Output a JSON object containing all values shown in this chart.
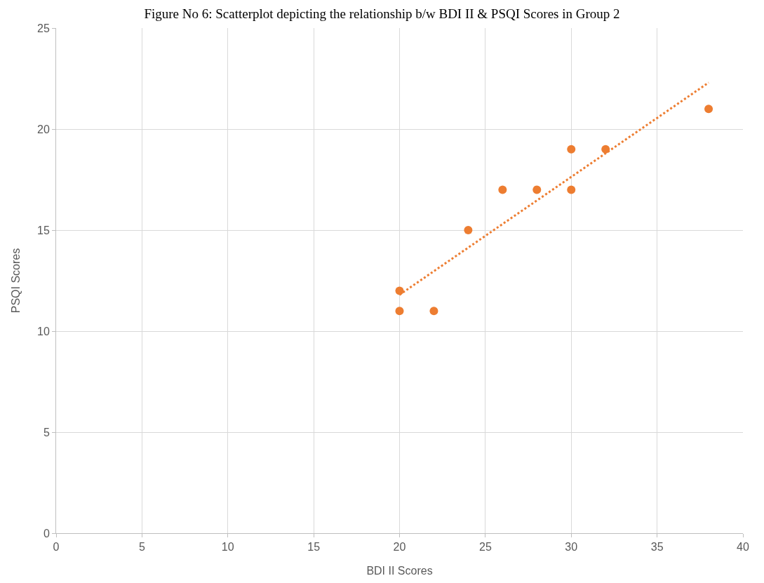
{
  "chart_data": {
    "type": "scatter",
    "title": "Figure No 6: Scatterplot depicting the relationship b/w BDI II & PSQI Scores in Group 2",
    "xlabel": "BDI II Scores",
    "ylabel": "PSQI Scores",
    "series": [
      {
        "color": "#ed7d31",
        "marker": "circle",
        "x": [
          20,
          20,
          22,
          24,
          26,
          28,
          30,
          30,
          32,
          38
        ],
        "values": [
          12,
          11,
          11,
          15,
          17,
          17,
          19,
          17,
          19,
          21
        ]
      },
      {
        "type": "line",
        "color": "#ed7d31",
        "line_style": "dotted",
        "marker": "none",
        "x": [
          20,
          38
        ],
        "values": [
          11.8,
          22.3
        ]
      }
    ],
    "xlim": [
      0,
      40
    ],
    "xticks": [
      0,
      5,
      10,
      15,
      20,
      25,
      30,
      35,
      40
    ],
    "ylim": [
      0,
      25
    ],
    "yticks": [
      0,
      5,
      10,
      15,
      20,
      25
    ],
    "grid": true,
    "legend": false
  }
}
